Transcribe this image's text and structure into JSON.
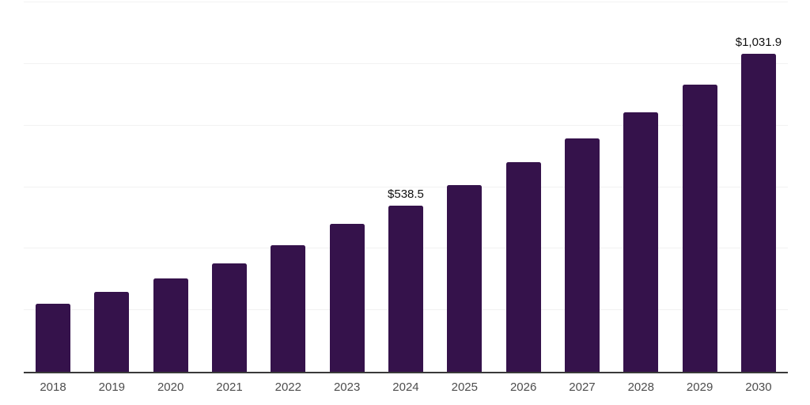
{
  "chart_data": {
    "type": "bar",
    "title": "",
    "xlabel": "",
    "ylabel": "",
    "categories": [
      "2018",
      "2019",
      "2020",
      "2021",
      "2022",
      "2023",
      "2024",
      "2025",
      "2026",
      "2027",
      "2028",
      "2029",
      "2030"
    ],
    "values": [
      221.0,
      258.5,
      302.0,
      353.0,
      412.0,
      481.0,
      538.5,
      605.5,
      681.0,
      759.0,
      843.5,
      933.5,
      1031.9
    ],
    "data_labels": {
      "2024": "$538.5",
      "2030": "$1,031.9"
    },
    "ylim": [
      0,
      1200
    ],
    "gridline_values": [
      200,
      400,
      600,
      800,
      1000,
      1200
    ],
    "grid": true,
    "legend": "none",
    "colors": {
      "bar": "#35124b",
      "grid": "#f2f2f2",
      "axis": "#3a3a3a",
      "tick_label": "#4d4d4d",
      "data_label": "#111111"
    }
  }
}
